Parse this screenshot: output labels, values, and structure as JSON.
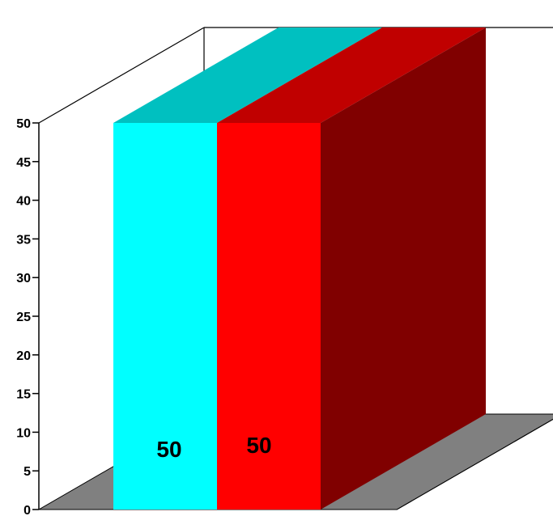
{
  "chart_data": {
    "type": "bar",
    "title": "",
    "xlabel": "",
    "ylabel": "",
    "ylim": [
      0,
      50
    ],
    "yticks": [
      0,
      5,
      10,
      15,
      20,
      25,
      30,
      35,
      40,
      45,
      50
    ],
    "grid": false,
    "legend": "none",
    "series": [
      {
        "value": 50,
        "label": "50",
        "front_color": "#00ffff",
        "top_color": "#00c0c0"
      },
      {
        "value": 50,
        "label": "50",
        "front_color": "#ff0000",
        "top_color": "#c00000",
        "side_color": "#800000"
      }
    ],
    "floor_color": "#808080"
  }
}
